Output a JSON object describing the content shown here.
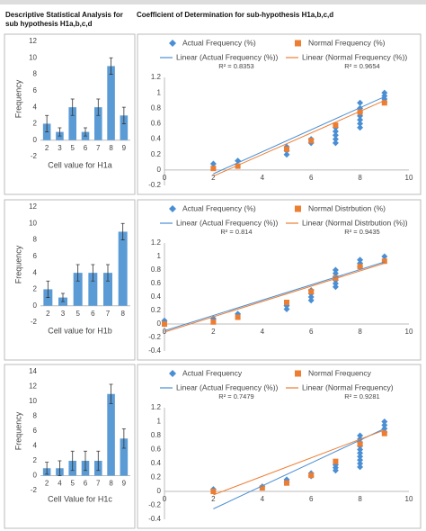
{
  "header": {
    "left": "Descriptive Statistical Analysis for sub hypothesis H1a,b,c,d",
    "right": "Coefficient of Determination for sub-hypothesis H1a,b,c,d"
  },
  "chart_data": [
    {
      "type": "bar",
      "categories": [
        "2",
        "3",
        "5",
        "6",
        "7",
        "8",
        "9"
      ],
      "values": [
        2,
        1,
        4,
        1,
        4,
        9,
        3
      ],
      "errors": [
        1,
        0.5,
        1,
        0.5,
        1,
        1,
        1
      ],
      "color": "#5b9bd5",
      "ylim": [
        -2,
        12
      ],
      "yticks": [
        -2,
        0,
        2,
        4,
        6,
        8,
        10,
        12
      ],
      "ylabel": "Frequency",
      "xlabel": "Cell value for H1a"
    },
    {
      "type": "scatter",
      "xlim": [
        0,
        10
      ],
      "xticks": [
        0,
        2,
        4,
        6,
        8,
        10
      ],
      "ylim": [
        -0.2,
        1.2
      ],
      "yticks": [
        -0.2,
        0,
        0.2,
        0.4,
        0.6,
        0.8,
        1,
        1.2
      ],
      "annotations": [
        "R² = 0.8353",
        "R² = 0.9654"
      ],
      "series": [
        {
          "name": "Actual Frequency (%)",
          "color": "#4a8fd4",
          "marker": "diamond",
          "x": [
            2,
            3,
            5,
            5,
            5,
            6,
            6,
            7,
            7,
            7,
            7,
            7,
            8,
            8,
            8,
            8,
            8,
            8,
            8,
            9,
            9,
            9,
            9
          ],
          "values": [
            0.08,
            0.12,
            0.2,
            0.25,
            0.3,
            0.35,
            0.4,
            0.35,
            0.4,
            0.45,
            0.5,
            0.55,
            0.55,
            0.6,
            0.65,
            0.7,
            0.75,
            0.8,
            0.87,
            0.88,
            0.92,
            0.96,
            1.0
          ]
        },
        {
          "name": "Normal Frequency (%)",
          "color": "#ed7d31",
          "marker": "square",
          "x": [
            2,
            3,
            5,
            6,
            7,
            8,
            9
          ],
          "values": [
            0.02,
            0.05,
            0.27,
            0.38,
            0.58,
            0.75,
            0.87
          ]
        },
        {
          "name": "Linear (Actual Frequency (%))",
          "color": "#4a8fd4",
          "marker": "line",
          "x": [
            2,
            9
          ],
          "values": [
            -0.05,
            0.95
          ]
        },
        {
          "name": "Linear (Normal Frequency (%))",
          "color": "#ed7d31",
          "marker": "line",
          "x": [
            2,
            9
          ],
          "values": [
            -0.08,
            0.9
          ]
        }
      ]
    },
    {
      "type": "bar",
      "categories": [
        "2",
        "3",
        "5",
        "6",
        "7",
        "8"
      ],
      "values": [
        2,
        1,
        4,
        4,
        4,
        9
      ],
      "errors": [
        1,
        0.5,
        1,
        1,
        1,
        1
      ],
      "color": "#5b9bd5",
      "ylim": [
        -2,
        12
      ],
      "yticks": [
        -2,
        0,
        2,
        4,
        6,
        8,
        10,
        12
      ],
      "ylabel": "Frequency",
      "xlabel": "Cell value for H1b"
    },
    {
      "type": "scatter",
      "xlim": [
        0,
        10
      ],
      "xticks": [
        0,
        2,
        4,
        6,
        8,
        10
      ],
      "ylim": [
        -0.4,
        1.2
      ],
      "yticks": [
        -0.4,
        -0.2,
        0,
        0.2,
        0.4,
        0.6,
        0.8,
        1,
        1.2
      ],
      "annotations": [
        "R² = 0.814",
        "R² = 0.9435"
      ],
      "series": [
        {
          "name": "Actual Frequency (%)",
          "color": "#4a8fd4",
          "marker": "diamond",
          "x": [
            0,
            2,
            3,
            5,
            5,
            6,
            6,
            6,
            6,
            7,
            7,
            7,
            7,
            7,
            7,
            8,
            8,
            8,
            9
          ],
          "values": [
            0.05,
            0.08,
            0.15,
            0.22,
            0.27,
            0.35,
            0.4,
            0.45,
            0.5,
            0.55,
            0.6,
            0.65,
            0.7,
            0.75,
            0.8,
            0.85,
            0.9,
            0.95,
            1.0
          ]
        },
        {
          "name": "Normal Distrbution (%)",
          "color": "#ed7d31",
          "marker": "square",
          "x": [
            0,
            2,
            3,
            5,
            6,
            7,
            8,
            9
          ],
          "values": [
            0.0,
            0.03,
            0.1,
            0.32,
            0.48,
            0.68,
            0.85,
            0.93
          ]
        },
        {
          "name": "Linear (Actual Frequency (%))",
          "color": "#4a8fd4",
          "marker": "line",
          "x": [
            0,
            9
          ],
          "values": [
            -0.1,
            0.92
          ]
        },
        {
          "name": "Linear (Normal Distrbution (%))",
          "color": "#ed7d31",
          "marker": "line",
          "x": [
            0,
            9
          ],
          "values": [
            -0.12,
            0.9
          ]
        }
      ]
    },
    {
      "type": "bar",
      "categories": [
        "2",
        "4",
        "5",
        "6",
        "7",
        "8",
        "9"
      ],
      "values": [
        1,
        1,
        2,
        2,
        2,
        11,
        5
      ],
      "errors": [
        0.8,
        1,
        1.3,
        1.3,
        1.3,
        1.3,
        1.3
      ],
      "color": "#5b9bd5",
      "ylim": [
        -2,
        14
      ],
      "yticks": [
        -2,
        0,
        2,
        4,
        6,
        8,
        10,
        12,
        14
      ],
      "ylabel": "Frequency",
      "xlabel": "Cell Value for H1c"
    },
    {
      "type": "scatter",
      "xlim": [
        0,
        10
      ],
      "xticks": [
        0,
        2,
        4,
        6,
        8,
        10
      ],
      "ylim": [
        -0.4,
        1.2
      ],
      "yticks": [
        -0.4,
        -0.2,
        0,
        0.2,
        0.4,
        0.6,
        0.8,
        1,
        1.2
      ],
      "annotations": [
        "R² = 0.7479",
        "R² = 0.9281"
      ],
      "series": [
        {
          "name": "Actual Frequency",
          "color": "#4a8fd4",
          "marker": "diamond",
          "x": [
            2,
            4,
            5,
            5,
            6,
            6,
            7,
            7,
            7,
            8,
            8,
            8,
            8,
            8,
            8,
            8,
            8,
            8,
            8,
            9,
            9,
            9,
            9
          ],
          "values": [
            0.03,
            0.07,
            0.13,
            0.17,
            0.22,
            0.26,
            0.3,
            0.34,
            0.38,
            0.35,
            0.4,
            0.45,
            0.5,
            0.55,
            0.6,
            0.65,
            0.7,
            0.75,
            0.8,
            0.85,
            0.9,
            0.95,
            1.0
          ]
        },
        {
          "name": "Normal Frequency",
          "color": "#ed7d31",
          "marker": "square",
          "x": [
            2,
            4,
            5,
            6,
            7,
            8,
            9
          ],
          "values": [
            0.0,
            0.05,
            0.12,
            0.23,
            0.43,
            0.68,
            0.83
          ]
        },
        {
          "name": "Linear (Actual Frequency (%))",
          "color": "#4a8fd4",
          "marker": "line",
          "x": [
            2,
            9
          ],
          "values": [
            -0.25,
            0.9
          ]
        },
        {
          "name": "Linear (Normal Frequency)",
          "color": "#ed7d31",
          "marker": "line",
          "x": [
            2,
            9
          ],
          "values": [
            -0.05,
            0.88
          ]
        }
      ]
    }
  ]
}
